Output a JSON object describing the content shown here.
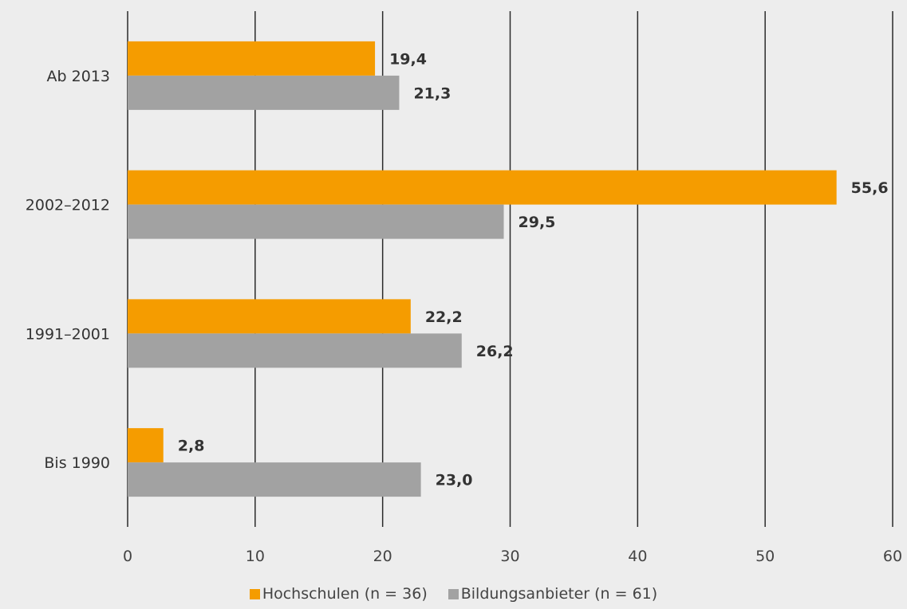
{
  "chart_data": {
    "type": "bar",
    "orientation": "horizontal",
    "categories": [
      "Ab 2013",
      "2002–2012",
      "1991–2001",
      "Bis 1990"
    ],
    "series": [
      {
        "name": "Hochschulen (n = 36)",
        "color": "#f59c00",
        "values": [
          19.4,
          55.6,
          22.2,
          2.8
        ],
        "labels": [
          "19,4",
          "55,6",
          "22,2",
          "2,8"
        ]
      },
      {
        "name": "Bildungsanbieter (n = 61)",
        "color": "#a2a2a2",
        "values": [
          21.3,
          29.5,
          26.2,
          23.0
        ],
        "labels": [
          "21,3",
          "29,5",
          "26,2",
          "23,0"
        ]
      }
    ],
    "xlim": [
      0,
      60
    ],
    "xticks": [
      0,
      10,
      20,
      30,
      40,
      50,
      60
    ],
    "xtick_labels": [
      "0",
      "10",
      "20",
      "30",
      "40",
      "50",
      "60"
    ],
    "grid": true,
    "legend_position": "bottom-center"
  }
}
